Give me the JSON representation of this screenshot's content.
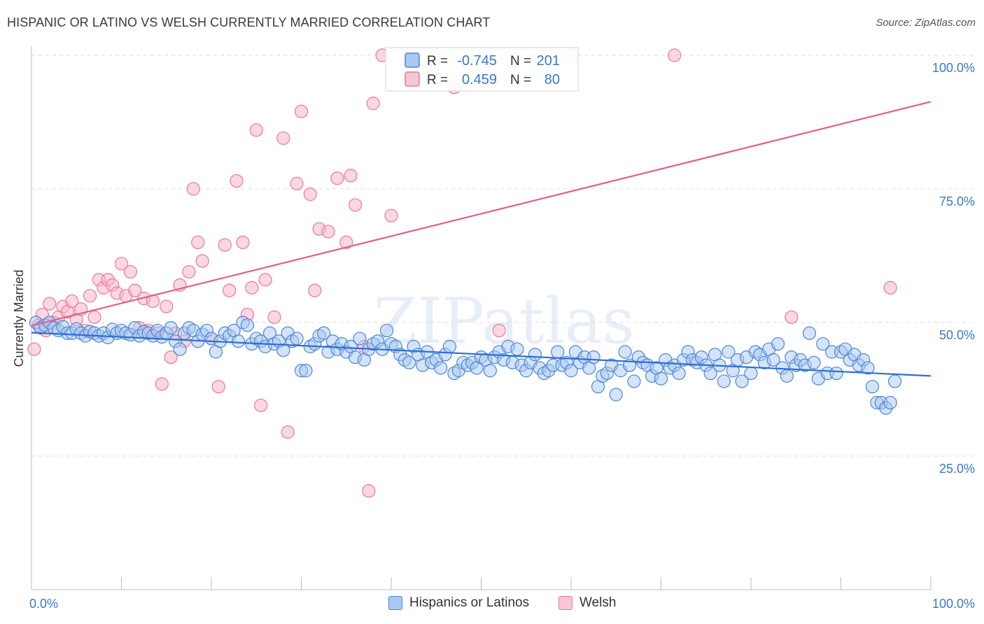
{
  "header": {
    "title": "HISPANIC OR LATINO VS WELSH CURRENTLY MARRIED CORRELATION CHART",
    "source": "Source: ZipAtlas.com"
  },
  "watermark": "ZIPatlas",
  "colors": {
    "blue_fill": "#a9c8f0",
    "blue_stroke": "#4a86d8",
    "blue_line": "#2a6fd4",
    "pink_fill": "#f7b6c9",
    "pink_stroke": "#e8799b",
    "pink_line": "#e0608a",
    "axis_text": "#3a78c9",
    "grid": "#dedede"
  },
  "chart_data": {
    "type": "scatter",
    "title": "HISPANIC OR LATINO VS WELSH CURRENTLY MARRIED CORRELATION CHART",
    "ylabel": "Currently Married",
    "xlabel": "",
    "xlim": [
      0,
      100
    ],
    "ylim": [
      0,
      100
    ],
    "x_tick_labels": [
      "0.0%",
      "100.0%"
    ],
    "y_ticks": [
      25,
      50,
      75,
      100
    ],
    "y_tick_labels": [
      "25.0%",
      "50.0%",
      "75.0%",
      "100.0%"
    ],
    "grid": "horizontal dashed",
    "legend_position": "bottom",
    "stats": [
      {
        "r_label": "R =",
        "r": "-0.745",
        "n_label": "N =",
        "n": "201"
      },
      {
        "r_label": "R =",
        "r": "0.459",
        "n_label": "N =",
        "n": "80"
      }
    ],
    "series": [
      {
        "name": "Hispanics or Latinos",
        "trend": {
          "x0": 0,
          "y0": 48.1,
          "x1": 100,
          "y1": 40.0
        },
        "points": [
          [
            0.5,
            50.0
          ],
          [
            1,
            49.0
          ],
          [
            1.5,
            49.5
          ],
          [
            2,
            50.0
          ],
          [
            2.5,
            49.0
          ],
          [
            3,
            48.5
          ],
          [
            3.5,
            49.2
          ],
          [
            4,
            48.0
          ],
          [
            4.5,
            48.0
          ],
          [
            5,
            48.8
          ],
          [
            5.5,
            48.0
          ],
          [
            6,
            47.5
          ],
          [
            6.5,
            48.3
          ],
          [
            7,
            48.0
          ],
          [
            7.5,
            47.5
          ],
          [
            8,
            48.0
          ],
          [
            8.5,
            47.2
          ],
          [
            9,
            48.7
          ],
          [
            9.5,
            48.0
          ],
          [
            10,
            48.5
          ],
          [
            10.5,
            48.0
          ],
          [
            11,
            47.7
          ],
          [
            11.5,
            49.0
          ],
          [
            12,
            47.5
          ],
          [
            12.5,
            48.3
          ],
          [
            13,
            48.0
          ],
          [
            13.5,
            47.5
          ],
          [
            14,
            48.5
          ],
          [
            14.5,
            47.3
          ],
          [
            15,
            48.0
          ],
          [
            15.5,
            49.0
          ],
          [
            16,
            46.5
          ],
          [
            16.5,
            45.0
          ],
          [
            17,
            48.0
          ],
          [
            17.5,
            49.0
          ],
          [
            18,
            48.5
          ],
          [
            18.5,
            46.5
          ],
          [
            19,
            47.8
          ],
          [
            19.5,
            48.5
          ],
          [
            20,
            47.0
          ],
          [
            20.5,
            44.5
          ],
          [
            21,
            46.5
          ],
          [
            21.5,
            48.0
          ],
          [
            22,
            47.5
          ],
          [
            22.5,
            48.5
          ],
          [
            23,
            46.5
          ],
          [
            23.5,
            50.0
          ],
          [
            24,
            49.5
          ],
          [
            24.5,
            46.0
          ],
          [
            25,
            47.0
          ],
          [
            25.5,
            46.5
          ],
          [
            26,
            45.5
          ],
          [
            26.5,
            48.0
          ],
          [
            27,
            46.0
          ],
          [
            27.5,
            46.5
          ],
          [
            28,
            44.8
          ],
          [
            28.5,
            48.0
          ],
          [
            29,
            46.5
          ],
          [
            29.5,
            47.0
          ],
          [
            30,
            41.0
          ],
          [
            30.5,
            41.0
          ],
          [
            31,
            45.5
          ],
          [
            31.5,
            46.0
          ],
          [
            32,
            47.5
          ],
          [
            32.5,
            48.0
          ],
          [
            33,
            44.5
          ],
          [
            33.5,
            46.5
          ],
          [
            34,
            45.0
          ],
          [
            34.5,
            46.0
          ],
          [
            35,
            44.5
          ],
          [
            35.5,
            45.5
          ],
          [
            36,
            43.5
          ],
          [
            36.5,
            47.0
          ],
          [
            37,
            43.0
          ],
          [
            37.5,
            45.0
          ],
          [
            38,
            46.0
          ],
          [
            38.5,
            46.5
          ],
          [
            39,
            45.0
          ],
          [
            39.5,
            48.5
          ],
          [
            40,
            46.0
          ],
          [
            40.5,
            45.5
          ],
          [
            41,
            44.0
          ],
          [
            41.5,
            43.0
          ],
          [
            42,
            42.5
          ],
          [
            42.5,
            45.5
          ],
          [
            43,
            44.0
          ],
          [
            43.5,
            42.0
          ],
          [
            44,
            44.5
          ],
          [
            44.5,
            42.5
          ],
          [
            45,
            43.0
          ],
          [
            45.5,
            41.5
          ],
          [
            46,
            44.0
          ],
          [
            46.5,
            45.5
          ],
          [
            47,
            40.5
          ],
          [
            47.5,
            41.0
          ],
          [
            48,
            42.5
          ],
          [
            48.5,
            42.0
          ],
          [
            49,
            42.5
          ],
          [
            49.5,
            41.5
          ],
          [
            50,
            43.5
          ],
          [
            50.5,
            43.0
          ],
          [
            51,
            41.0
          ],
          [
            51.5,
            43.5
          ],
          [
            52,
            44.5
          ],
          [
            52.5,
            43.0
          ],
          [
            53,
            45.5
          ],
          [
            53.5,
            42.5
          ],
          [
            54,
            45.0
          ],
          [
            54.5,
            42.0
          ],
          [
            55,
            41.0
          ],
          [
            55.5,
            42.5
          ],
          [
            56,
            44.0
          ],
          [
            56.5,
            41.5
          ],
          [
            57,
            40.5
          ],
          [
            57.5,
            41.0
          ],
          [
            58,
            42.0
          ],
          [
            58.5,
            44.5
          ],
          [
            59,
            42.0
          ],
          [
            59.5,
            42.5
          ],
          [
            60,
            41.0
          ],
          [
            60.5,
            44.5
          ],
          [
            61,
            42.5
          ],
          [
            61.5,
            43.5
          ],
          [
            62,
            41.5
          ],
          [
            62.5,
            43.5
          ],
          [
            63,
            38.0
          ],
          [
            63.5,
            40.0
          ],
          [
            64,
            40.5
          ],
          [
            64.5,
            42.0
          ],
          [
            65,
            36.5
          ],
          [
            65.5,
            41.0
          ],
          [
            66,
            44.5
          ],
          [
            66.5,
            42.0
          ],
          [
            67,
            39.0
          ],
          [
            67.5,
            43.5
          ],
          [
            68,
            42.5
          ],
          [
            68.5,
            42.0
          ],
          [
            69,
            40.0
          ],
          [
            69.5,
            41.5
          ],
          [
            70,
            39.5
          ],
          [
            70.5,
            43.0
          ],
          [
            71,
            41.5
          ],
          [
            71.5,
            42.0
          ],
          [
            72,
            40.5
          ],
          [
            72.5,
            43.0
          ],
          [
            73,
            44.5
          ],
          [
            73.5,
            43.0
          ],
          [
            74,
            42.5
          ],
          [
            74.5,
            43.5
          ],
          [
            75,
            42.0
          ],
          [
            75.5,
            40.5
          ],
          [
            76,
            44.0
          ],
          [
            76.5,
            42.0
          ],
          [
            77,
            39.0
          ],
          [
            77.5,
            44.5
          ],
          [
            78,
            41.0
          ],
          [
            78.5,
            43.0
          ],
          [
            79,
            39.0
          ],
          [
            79.5,
            43.5
          ],
          [
            80,
            40.5
          ],
          [
            80.5,
            44.5
          ],
          [
            81,
            44.0
          ],
          [
            81.5,
            42.5
          ],
          [
            82,
            45.0
          ],
          [
            82.5,
            43.0
          ],
          [
            83,
            46.0
          ],
          [
            83.5,
            41.5
          ],
          [
            84,
            40.0
          ],
          [
            84.5,
            43.5
          ],
          [
            85,
            42.0
          ],
          [
            85.5,
            43.0
          ],
          [
            86,
            42.0
          ],
          [
            86.5,
            48.0
          ],
          [
            87,
            42.5
          ],
          [
            87.5,
            39.5
          ],
          [
            88,
            46.0
          ],
          [
            88.5,
            40.5
          ],
          [
            89,
            44.5
          ],
          [
            89.5,
            40.5
          ],
          [
            90,
            44.5
          ],
          [
            90.5,
            45.0
          ],
          [
            91,
            43.0
          ],
          [
            91.5,
            44.0
          ],
          [
            92,
            42.0
          ],
          [
            92.5,
            43.0
          ],
          [
            93,
            41.5
          ],
          [
            93.5,
            38.0
          ],
          [
            94,
            35.0
          ],
          [
            94.5,
            35.0
          ],
          [
            95,
            34.0
          ],
          [
            95.5,
            35.0
          ],
          [
            96,
            39.0
          ]
        ]
      },
      {
        "name": "Welsh",
        "trend": {
          "x0": 0,
          "y0": 49.4,
          "x1": 100,
          "y1": 91.3
        },
        "points": [
          [
            0.3,
            45.0
          ],
          [
            0.8,
            49.5
          ],
          [
            1.2,
            51.5
          ],
          [
            1.6,
            48.5
          ],
          [
            2.0,
            53.5
          ],
          [
            2.5,
            50.0
          ],
          [
            3.0,
            51.0
          ],
          [
            3.5,
            53.0
          ],
          [
            4.0,
            52.0
          ],
          [
            4.5,
            54.0
          ],
          [
            5.0,
            50.5
          ],
          [
            5.5,
            52.5
          ],
          [
            6.0,
            48.5
          ],
          [
            6.5,
            55.0
          ],
          [
            7.0,
            51.0
          ],
          [
            7.5,
            58.0
          ],
          [
            8.0,
            56.5
          ],
          [
            8.5,
            58.0
          ],
          [
            9.0,
            57.0
          ],
          [
            9.5,
            55.5
          ],
          [
            10.0,
            61.0
          ],
          [
            10.5,
            55.0
          ],
          [
            11.0,
            59.5
          ],
          [
            11.5,
            56.0
          ],
          [
            12.0,
            49.0
          ],
          [
            12.5,
            54.5
          ],
          [
            13.0,
            48.5
          ],
          [
            13.5,
            54.0
          ],
          [
            14.0,
            48.0
          ],
          [
            14.5,
            38.5
          ],
          [
            15.0,
            53.0
          ],
          [
            15.5,
            43.5
          ],
          [
            16.0,
            48.0
          ],
          [
            16.5,
            57.0
          ],
          [
            17.0,
            46.5
          ],
          [
            17.5,
            59.5
          ],
          [
            18.0,
            75.0
          ],
          [
            18.5,
            65.0
          ],
          [
            19.0,
            61.5
          ],
          [
            20.0,
            47.0
          ],
          [
            20.8,
            38.0
          ],
          [
            21.5,
            64.5
          ],
          [
            22.0,
            56.0
          ],
          [
            22.8,
            76.5
          ],
          [
            23.5,
            65.0
          ],
          [
            24.0,
            51.5
          ],
          [
            24.5,
            56.5
          ],
          [
            25.0,
            86.0
          ],
          [
            25.5,
            34.5
          ],
          [
            26.0,
            58.0
          ],
          [
            27.0,
            51.0
          ],
          [
            28.0,
            84.5
          ],
          [
            28.5,
            29.5
          ],
          [
            29.5,
            76.0
          ],
          [
            30.0,
            89.5
          ],
          [
            31.0,
            74.0
          ],
          [
            31.5,
            56.0
          ],
          [
            32.0,
            67.5
          ],
          [
            33.0,
            67.0
          ],
          [
            34.0,
            77.0
          ],
          [
            35.0,
            65.0
          ],
          [
            35.5,
            77.5
          ],
          [
            36.0,
            72.0
          ],
          [
            37.0,
            45.5
          ],
          [
            37.5,
            18.5
          ],
          [
            38.0,
            91.0
          ],
          [
            39.0,
            100.0
          ],
          [
            40.0,
            70.0
          ],
          [
            45.0,
            100.0
          ],
          [
            47.0,
            94.0
          ],
          [
            52.0,
            48.5
          ],
          [
            60.0,
            100.0
          ],
          [
            71.5,
            100.0
          ],
          [
            84.5,
            51.0
          ],
          [
            95.5,
            56.5
          ]
        ]
      }
    ]
  }
}
